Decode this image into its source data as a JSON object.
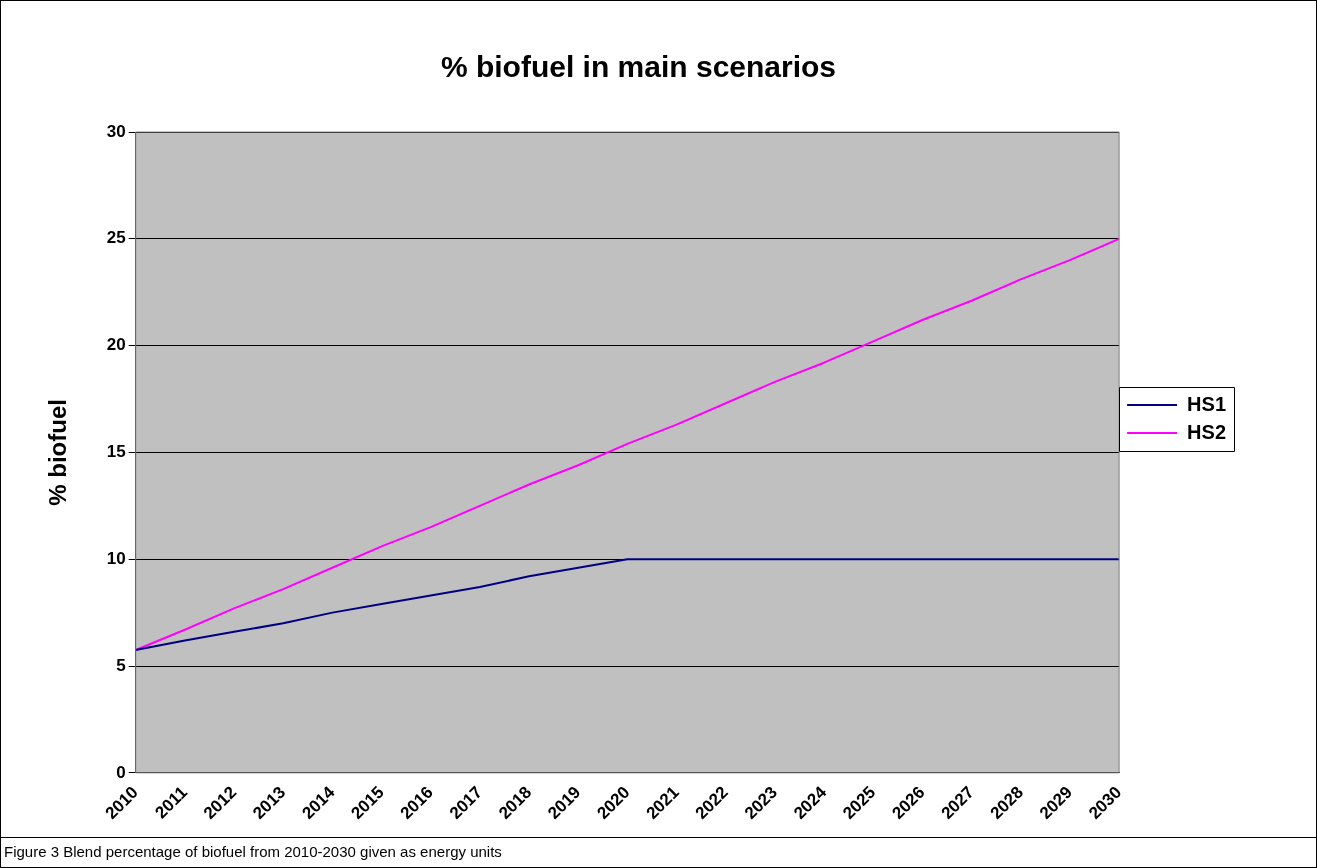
{
  "chart_data": {
    "type": "line",
    "title": "% biofuel in main scenarios",
    "ylabel": "% biofuel",
    "categories": [
      "2010",
      "2011",
      "2012",
      "2013",
      "2014",
      "2015",
      "2016",
      "2017",
      "2018",
      "2019",
      "2020",
      "2021",
      "2022",
      "2023",
      "2024",
      "2025",
      "2026",
      "2027",
      "2028",
      "2029",
      "2030"
    ],
    "series": [
      {
        "name": "HS1",
        "color": "#000080",
        "values": [
          5.75,
          6.2,
          6.6,
          7.0,
          7.5,
          7.9,
          8.3,
          8.7,
          9.2,
          9.6,
          10,
          10,
          10,
          10,
          10,
          10,
          10,
          10,
          10,
          10,
          10
        ]
      },
      {
        "name": "HS2",
        "color": "#ff00ff",
        "values": [
          5.75,
          6.7,
          7.7,
          8.6,
          9.6,
          10.6,
          11.5,
          12.5,
          13.5,
          14.4,
          15.4,
          16.3,
          17.3,
          18.3,
          19.2,
          20.2,
          21.2,
          22.1,
          23.1,
          24.0,
          25
        ]
      }
    ],
    "ylim": [
      0,
      30
    ],
    "yticks": [
      0,
      5,
      10,
      15,
      20,
      25,
      30
    ],
    "grid": "y",
    "legend": "right",
    "marker": "none",
    "line_style": "solid",
    "annotations": [
      "Figure 3 Blend percentage of biofuel from 2010-2030 given as energy units"
    ]
  }
}
